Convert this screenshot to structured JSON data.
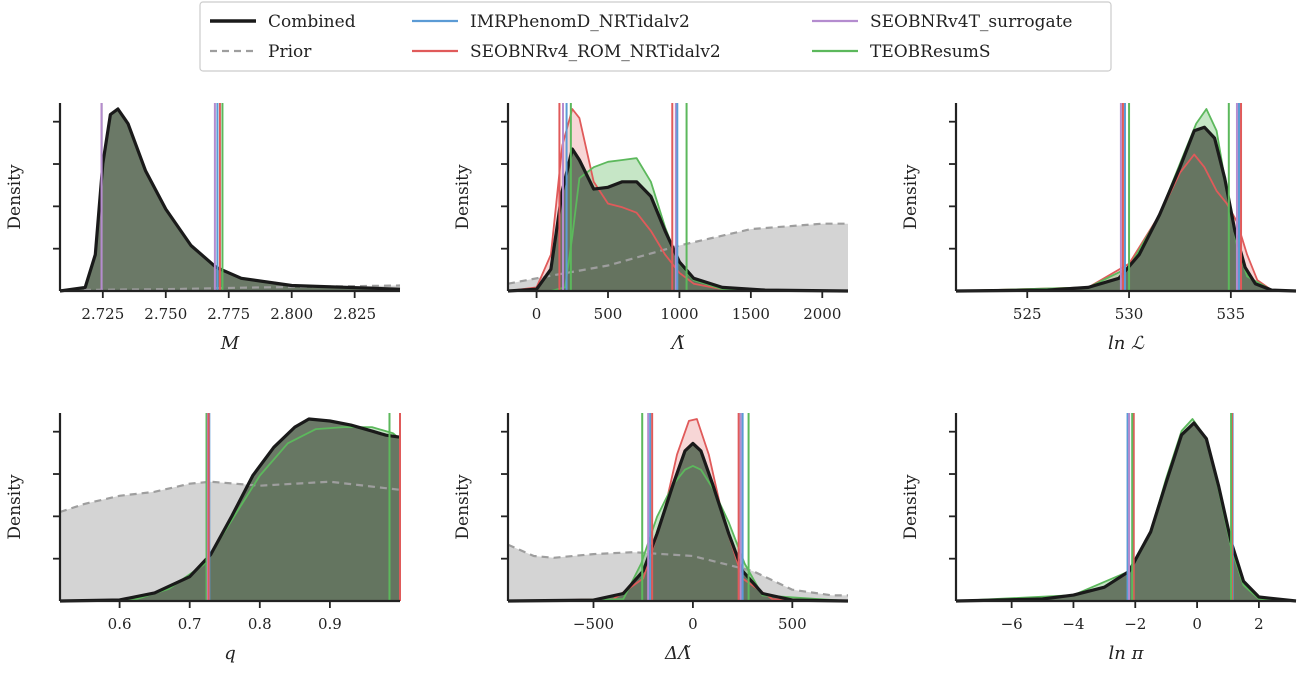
{
  "legend": {
    "entries": [
      {
        "label": "Combined",
        "color": "#1a1a1a",
        "style": "solid-thick"
      },
      {
        "label": "Prior",
        "color": "#9e9e9e",
        "style": "dashed"
      },
      {
        "label": "IMRPhenomD_NRTidalv2",
        "color": "#5b9bd5",
        "style": "solid"
      },
      {
        "label": "SEOBNRv4_ROM_NRTidalv2",
        "color": "#e05a5a",
        "style": "solid"
      },
      {
        "label": "SEOBNRv4T_surrogate",
        "color": "#b48ccf",
        "style": "solid"
      },
      {
        "label": "TEOBResumS",
        "color": "#5cb85c",
        "style": "solid"
      }
    ]
  },
  "chart_data": [
    {
      "type": "area",
      "xlabel": "M",
      "ylabel": "Density",
      "xlim": [
        2.708,
        2.843
      ],
      "xticks": [
        "2.725",
        "2.750",
        "2.775",
        "2.800",
        "2.825"
      ],
      "xtick_values": [
        2.725,
        2.75,
        2.775,
        2.8,
        2.825
      ],
      "series": [
        {
          "name": "Combined",
          "x": [
            2.708,
            2.718,
            2.722,
            2.725,
            2.728,
            2.731,
            2.735,
            2.742,
            2.75,
            2.76,
            2.77,
            2.78,
            2.8,
            2.843
          ],
          "y": [
            0,
            0.02,
            0.2,
            0.7,
            0.97,
            1.0,
            0.92,
            0.66,
            0.45,
            0.25,
            0.13,
            0.07,
            0.03,
            0.01
          ]
        },
        {
          "name": "Prior",
          "x": [
            2.708,
            2.75,
            2.78,
            2.843
          ],
          "y": [
            0.005,
            0.01,
            0.018,
            0.03
          ]
        }
      ],
      "credible_intervals": [
        {
          "name": "TEOBResumS",
          "bounds": [
            2.7245,
            2.7725
          ]
        },
        {
          "name": "IMRPhenomD_NRTidalv2",
          "bounds": [
            2.7245,
            2.7705
          ]
        },
        {
          "name": "SEOBNRv4_ROM_NRTidalv2",
          "bounds": [
            2.7245,
            2.7715
          ]
        },
        {
          "name": "SEOBNRv4T_surrogate",
          "bounds": [
            2.7245,
            2.7695
          ]
        }
      ]
    },
    {
      "type": "area",
      "xlabel": "Λ̃",
      "ylabel": "Density",
      "xlim": [
        -200,
        2180
      ],
      "xticks": [
        "0",
        "500",
        "1000",
        "1500",
        "2000"
      ],
      "xtick_values": [
        0,
        500,
        1000,
        1500,
        2000
      ],
      "series": [
        {
          "name": "Combined",
          "x": [
            -200,
            0,
            100,
            180,
            250,
            300,
            400,
            500,
            600,
            700,
            800,
            900,
            1000,
            1100,
            1300,
            1600,
            2180
          ],
          "y": [
            0,
            0.01,
            0.12,
            0.55,
            0.78,
            0.72,
            0.56,
            0.57,
            0.6,
            0.6,
            0.52,
            0.33,
            0.16,
            0.07,
            0.02,
            0.005,
            0
          ]
        },
        {
          "name": "TEOBResumS",
          "x": [
            -200,
            100,
            200,
            250,
            300,
            400,
            500,
            600,
            700,
            800,
            900,
            1000,
            1100,
            1300,
            2180
          ],
          "y": [
            0,
            0,
            0.02,
            0.3,
            0.62,
            0.68,
            0.71,
            0.72,
            0.73,
            0.6,
            0.35,
            0.15,
            0.06,
            0.01,
            0
          ]
        },
        {
          "name": "SEOBNRv4_ROM_NRTidalv2",
          "x": [
            -200,
            0,
            100,
            180,
            250,
            300,
            400,
            500,
            600,
            700,
            800,
            900,
            1000,
            1100,
            1300,
            2180
          ],
          "y": [
            0,
            0.02,
            0.2,
            0.8,
            1.0,
            0.95,
            0.6,
            0.48,
            0.46,
            0.43,
            0.33,
            0.2,
            0.1,
            0.04,
            0.01,
            0
          ]
        },
        {
          "name": "Prior",
          "x": [
            -200,
            0,
            500,
            1000,
            1500,
            2000,
            2180
          ],
          "y": [
            0.04,
            0.07,
            0.14,
            0.25,
            0.34,
            0.37,
            0.37
          ]
        }
      ],
      "credible_intervals": [
        {
          "name": "SEOBNRv4_ROM_NRTidalv2",
          "bounds": [
            160,
            950
          ]
        },
        {
          "name": "SEOBNRv4T_surrogate",
          "bounds": [
            185,
            975
          ]
        },
        {
          "name": "IMRPhenomD_NRTidalv2",
          "bounds": [
            210,
            985
          ]
        },
        {
          "name": "TEOBResumS",
          "bounds": [
            240,
            1050
          ]
        }
      ]
    },
    {
      "type": "area",
      "xlabel": "ln ℒ",
      "ylabel": "Density",
      "xlim": [
        521.5,
        538.2
      ],
      "xticks": [
        "525",
        "530",
        "535"
      ],
      "xtick_values": [
        525,
        530,
        535
      ],
      "series": [
        {
          "name": "Combined",
          "x": [
            521.5,
            526,
            528,
            529.5,
            530.5,
            531.5,
            532.5,
            533.2,
            533.7,
            534.2,
            534.7,
            535.2,
            535.7,
            536.2,
            537,
            538.2
          ],
          "y": [
            0,
            0.005,
            0.02,
            0.07,
            0.2,
            0.42,
            0.68,
            0.88,
            0.9,
            0.84,
            0.62,
            0.33,
            0.13,
            0.04,
            0.005,
            0
          ]
        },
        {
          "name": "TEOBResumS",
          "x": [
            521.5,
            528,
            530,
            531.5,
            532.5,
            533.3,
            533.8,
            534.3,
            534.8,
            535.3,
            535.8,
            537,
            538.2
          ],
          "y": [
            0,
            0.02,
            0.13,
            0.42,
            0.7,
            0.92,
            1.0,
            0.88,
            0.55,
            0.25,
            0.08,
            0.005,
            0
          ]
        },
        {
          "name": "SEOBNRv4_ROM_NRTidalv2",
          "x": [
            521.5,
            528,
            530,
            531.5,
            532.5,
            533.2,
            533.7,
            534.3,
            534.8,
            535.3,
            535.8,
            536.3,
            537,
            538.2
          ],
          "y": [
            0,
            0.02,
            0.15,
            0.42,
            0.65,
            0.75,
            0.68,
            0.55,
            0.48,
            0.38,
            0.2,
            0.06,
            0.005,
            0
          ]
        }
      ],
      "credible_intervals": [
        {
          "name": "SEOBNRv4T_surrogate",
          "bounds": [
            529.6,
            535.3
          ]
        },
        {
          "name": "IMRPhenomD_NRTidalv2",
          "bounds": [
            529.8,
            535.4
          ]
        },
        {
          "name": "SEOBNRv4_ROM_NRTidalv2",
          "bounds": [
            529.7,
            535.5
          ]
        },
        {
          "name": "TEOBResumS",
          "bounds": [
            530.0,
            534.9
          ]
        }
      ]
    },
    {
      "type": "area",
      "xlabel": "q",
      "ylabel": "Density",
      "xlim": [
        0.515,
        1.0
      ],
      "xticks": [
        "0.6",
        "0.7",
        "0.8",
        "0.9"
      ],
      "xtick_values": [
        0.6,
        0.7,
        0.8,
        0.9
      ],
      "series": [
        {
          "name": "Combined",
          "x": [
            0.515,
            0.6,
            0.65,
            0.7,
            0.73,
            0.76,
            0.79,
            0.82,
            0.85,
            0.87,
            0.9,
            0.93,
            0.96,
            0.98,
            1.0
          ],
          "y": [
            0,
            0.005,
            0.04,
            0.12,
            0.23,
            0.42,
            0.62,
            0.76,
            0.86,
            0.9,
            0.89,
            0.87,
            0.84,
            0.82,
            0.81
          ]
        },
        {
          "name": "TEOBResumS",
          "x": [
            0.515,
            0.62,
            0.67,
            0.72,
            0.76,
            0.8,
            0.84,
            0.88,
            0.92,
            0.96,
            0.99,
            1.0
          ],
          "y": [
            0,
            0.005,
            0.06,
            0.18,
            0.4,
            0.62,
            0.78,
            0.85,
            0.86,
            0.86,
            0.83,
            0.8
          ]
        },
        {
          "name": "Prior",
          "x": [
            0.515,
            0.55,
            0.6,
            0.65,
            0.7,
            0.73,
            0.8,
            0.9,
            1.0
          ],
          "y": [
            0.44,
            0.48,
            0.52,
            0.54,
            0.58,
            0.59,
            0.57,
            0.59,
            0.55
          ]
        }
      ],
      "credible_intervals": [
        {
          "name": "TEOBResumS",
          "bounds": [
            0.724,
            0.985
          ]
        },
        {
          "name": "SEOBNRv4T_surrogate",
          "bounds": [
            0.726,
            1.0
          ]
        },
        {
          "name": "IMRPhenomD_NRTidalv2",
          "bounds": [
            0.728,
            1.0
          ]
        },
        {
          "name": "SEOBNRv4_ROM_NRTidalv2",
          "bounds": [
            0.727,
            1.0
          ]
        }
      ]
    },
    {
      "type": "area",
      "xlabel": "ΔΛ̃",
      "ylabel": "Density",
      "xlim": [
        -930,
        780
      ],
      "xticks": [
        "−500",
        "0",
        "500"
      ],
      "xtick_values": [
        -500,
        0,
        500
      ],
      "series": [
        {
          "name": "Combined",
          "x": [
            -930,
            -500,
            -350,
            -250,
            -180,
            -100,
            -40,
            0,
            40,
            100,
            180,
            250,
            350,
            500,
            780
          ],
          "y": [
            0,
            0.005,
            0.04,
            0.16,
            0.36,
            0.62,
            0.8,
            0.84,
            0.8,
            0.62,
            0.36,
            0.16,
            0.04,
            0.005,
            0
          ]
        },
        {
          "name": "TEOBResumS",
          "x": [
            -930,
            -350,
            -260,
            -180,
            -100,
            -40,
            0,
            40,
            100,
            180,
            260,
            350,
            780
          ],
          "y": [
            0,
            0.01,
            0.2,
            0.45,
            0.62,
            0.7,
            0.72,
            0.7,
            0.6,
            0.42,
            0.2,
            0.03,
            0
          ]
        },
        {
          "name": "SEOBNRv4_ROM_NRTidalv2",
          "x": [
            -930,
            -400,
            -250,
            -150,
            -80,
            -20,
            20,
            80,
            150,
            250,
            400,
            780
          ],
          "y": [
            0,
            0.01,
            0.12,
            0.45,
            0.78,
            0.96,
            0.97,
            0.78,
            0.45,
            0.12,
            0.01,
            0
          ]
        },
        {
          "name": "Prior",
          "x": [
            -930,
            -800,
            -700,
            -500,
            -300,
            0,
            300,
            500,
            700,
            780
          ],
          "y": [
            0.3,
            0.24,
            0.23,
            0.25,
            0.26,
            0.24,
            0.16,
            0.06,
            0.03,
            0.03
          ]
        }
      ],
      "credible_intervals": [
        {
          "name": "TEOBResumS",
          "bounds": [
            -255,
            280
          ]
        },
        {
          "name": "SEOBNRv4T_surrogate",
          "bounds": [
            -225,
            240
          ]
        },
        {
          "name": "IMRPhenomD_NRTidalv2",
          "bounds": [
            -215,
            250
          ]
        },
        {
          "name": "SEOBNRv4_ROM_NRTidalv2",
          "bounds": [
            -205,
            230
          ]
        }
      ]
    },
    {
      "type": "area",
      "xlabel": "ln π",
      "ylabel": "Density",
      "xlim": [
        -7.8,
        3.2
      ],
      "xticks": [
        "−6",
        "−4",
        "−2",
        "0",
        "2"
      ],
      "xtick_values": [
        -6,
        -4,
        -2,
        0,
        2
      ],
      "series": [
        {
          "name": "Combined",
          "x": [
            -7.8,
            -5,
            -4,
            -3,
            -2.2,
            -1.5,
            -1,
            -0.5,
            -0.1,
            0.3,
            0.7,
            1.1,
            1.5,
            2,
            3.2
          ],
          "y": [
            0,
            0.01,
            0.03,
            0.07,
            0.15,
            0.35,
            0.6,
            0.84,
            0.9,
            0.82,
            0.58,
            0.3,
            0.1,
            0.02,
            0
          ]
        },
        {
          "name": "TEOBResumS",
          "x": [
            -7.8,
            -4,
            -2.2,
            -1.5,
            -1,
            -0.5,
            -0.15,
            0.3,
            0.7,
            1.1,
            1.5,
            2,
            3.2
          ],
          "y": [
            0,
            0.03,
            0.15,
            0.35,
            0.62,
            0.86,
            0.92,
            0.82,
            0.56,
            0.27,
            0.08,
            0.01,
            0
          ]
        }
      ],
      "credible_intervals": [
        {
          "name": "IMRPhenomD_NRTidalv2",
          "bounds": [
            -2.25,
            1.15
          ]
        },
        {
          "name": "SEOBNRv4T_surrogate",
          "bounds": [
            -2.2,
            1.12
          ]
        },
        {
          "name": "SEOBNRv4_ROM_NRTidalv2",
          "bounds": [
            -2.05,
            1.13
          ]
        },
        {
          "name": "TEOBResumS",
          "bounds": [
            -2.1,
            1.1
          ]
        }
      ]
    }
  ]
}
